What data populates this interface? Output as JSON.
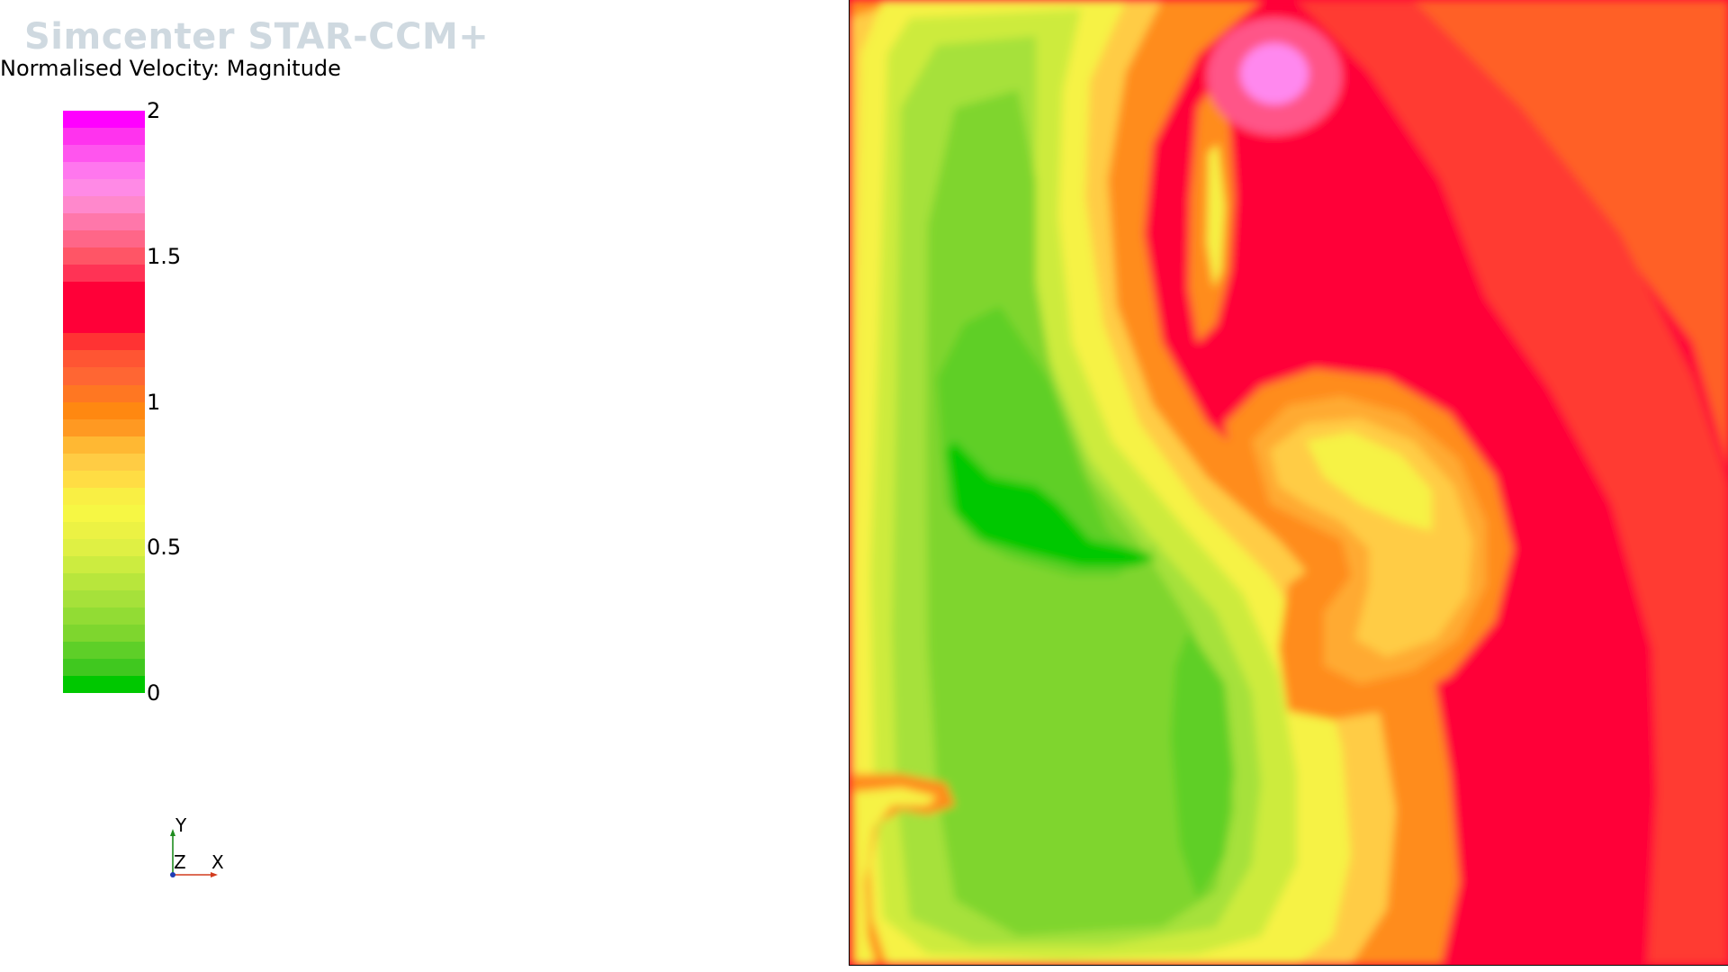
{
  "app": {
    "watermark": "Simcenter STAR-CCM+"
  },
  "scalar_bar": {
    "title": "Normalised Velocity: Magnitude",
    "min": 0,
    "max": 2,
    "ticks": [
      {
        "value": 2,
        "label": "2"
      },
      {
        "value": 1.5,
        "label": "1.5"
      },
      {
        "value": 1,
        "label": "1"
      },
      {
        "value": 0.5,
        "label": "0.5"
      },
      {
        "value": 0,
        "label": "0"
      }
    ],
    "colors_top_to_bottom": [
      "#ff00ff",
      "#ff33ee",
      "#ff55ee",
      "#ff77ee",
      "#ff8ae6",
      "#ff88cc",
      "#ff77aa",
      "#ff6688",
      "#ff5566",
      "#ff3355",
      "#ff0038",
      "#ff0038",
      "#ff0038",
      "#ff3333",
      "#ff5533",
      "#ff6633",
      "#ff7722",
      "#ff8811",
      "#ff9922",
      "#ffb833",
      "#ffcc44",
      "#ffdd44",
      "#f9ef44",
      "#f6f744",
      "#ecf244",
      "#dff044",
      "#ccec40",
      "#b8e63c",
      "#a6e13a",
      "#92dc34",
      "#7ed62e",
      "#5ecf28",
      "#40c81f",
      "#00c800"
    ]
  },
  "axes_triad": {
    "x_label": "X",
    "y_label": "Y",
    "z_label": "Z",
    "x_color": "#d23c1e",
    "y_color": "#1e8c1e",
    "z_color": "#1e3cb4"
  },
  "contour_palette": {
    "background": "#ff0038",
    "orange_far": "#ff6028",
    "red_orange": "#ff3a30",
    "orange": "#ff8c1e",
    "light_orange": "#ffaa33",
    "gold": "#ffcc44",
    "yellow": "#f6f244",
    "yellow_green": "#cdeb3c",
    "light_green": "#a6e13a",
    "green": "#7fd52e",
    "mid_green": "#5ecf28",
    "deep_green": "#00c800",
    "pink_core": "#ff88ee",
    "pink_ring": "#ff5588"
  }
}
